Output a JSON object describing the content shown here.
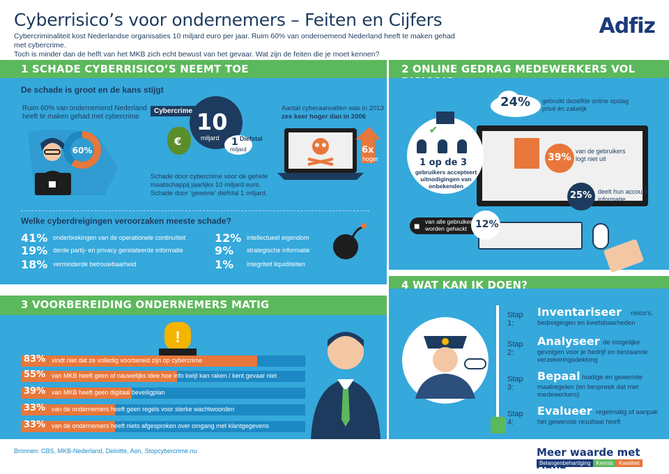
{
  "header": {
    "title": "Cyberrisico’s voor ondernemers  – Feiten en Cijfers",
    "intro1": "Cybercriminaliteit kost Nederlandse organisaties 10 miljard euro per jaar. Ruim 60% van ondernemend Nederland heeft te maken gehad met cybercrime.",
    "intro2": "Toch is minder dan de helft van het MKB zich echt bewust van het gevaar. Wat zijn de feiten die je moet kennen?",
    "logo": "Adfiz"
  },
  "section1": {
    "bar_label": "1   SCHADE CYBERRISICO’S NEEMT TOE",
    "heading": "De schade is groot en de kans stijgt",
    "ruim_line1": "Ruim 60% van ondernemend Nederland",
    "ruim_line2": "heeft te maken gehad met cybercrime",
    "donut_pct": "60%",
    "donut_value": 60,
    "cybercrime_label": "Cybercrime",
    "cybercrime_value": "10",
    "cybercrime_unit": "miljard",
    "diefstal_label": "Diefstal",
    "diefstal_value": "1",
    "diefstal_unit": "miljard",
    "euro_symbol": "€",
    "schade_line1": "Schade door cybercrime voor de gehele",
    "schade_line2": "maatschappij jaarlijks 10 miljard euro.",
    "schade_line3": "Schade door ‘gewone’ diefstal 1 miljard.",
    "aantal_line1": "Aantal cyberaanvallen was in 2013",
    "aantal_line2": "zes keer hoger dan in 2006",
    "arrow_value": "6x",
    "arrow_label": "hoger",
    "threats_heading": "Welke cyberdreigingen veroorzaken meeste schade?",
    "threats": [
      {
        "pct": "41%",
        "label": "onderbrekingen van de operationele continuïteit"
      },
      {
        "pct": "19%",
        "label": "derde partij- en privacy gerelateerde informatie"
      },
      {
        "pct": "18%",
        "label": "verminderde betrouwbaarheid"
      },
      {
        "pct": "12%",
        "label": "intellectueel eigendom"
      },
      {
        "pct": "9%",
        "label": "strategische informatie"
      },
      {
        "pct": "1%",
        "label": "integriteit liquiditeiten"
      }
    ]
  },
  "section2": {
    "bar_label": "2   ONLINE GEDRAG MEDEWERKERS VOL RISICO’S",
    "s24_pct": "24%",
    "s24_line1": "gebruikt dezelfde online opslag",
    "s24_line2": "privé én zakelijk",
    "s39_pct": "39%",
    "s39_line1": "van de gebruikers",
    "s39_line2": "logt niet uit",
    "s25_pct": "25%",
    "s25_line1": "deelt hun account-",
    "s25_line2": "informatie",
    "s12_pct": "12%",
    "s12_line1": "van alle gebruikers",
    "s12_line2": "worden gehackt",
    "one_of_three": "1 op de 3",
    "invite_line1": "gebruikers accepteert",
    "invite_line2": "uitnodigingen van",
    "invite_line3": "onbekenden"
  },
  "section3": {
    "bar_label": "3   VOORBEREIDING ONDERNEMERS MATIG",
    "rows": [
      {
        "pct": "83%",
        "value": 83,
        "text": "vindt niet dat ze volledig voorbereid zijn op cybercrime"
      },
      {
        "pct": "55%",
        "value": 55,
        "text": "van MKB heeft geen of nauwelijks idee hoe info kwijt kan raken / kent gevaar niet"
      },
      {
        "pct": "39%",
        "value": 39,
        "text": "van MKB heeft geen digitaal beveiligplan"
      },
      {
        "pct": "33%",
        "value": 33,
        "text": "van de ondernemers heeft geen regels voor sterke wachtwoorden"
      },
      {
        "pct": "33%",
        "value": 33,
        "text": "van de ondernemers heeft niets afgesproken over omgang met klantgegevens"
      }
    ]
  },
  "section4": {
    "bar_label": "4   WAT KAN IK DOEN?",
    "steps": [
      {
        "step": "Stap 1:",
        "keyword": "Inventariseer",
        "rest": "risico’s,",
        "desc": "bedreigingen en kwetsbaarheden"
      },
      {
        "step": "Stap 2:",
        "keyword": "Analyseer",
        "rest": "de mogelijke",
        "desc": "gevolgen voor je bedrijf en bestaande verzekeringsdekking"
      },
      {
        "step": "Stap 3:",
        "keyword": "Bepaal",
        "rest": "huidige en gewenste",
        "desc": "maatregelen (en bespreek dat met medewerkers)"
      },
      {
        "step": "Stap 4:",
        "keyword": "Evalueer",
        "rest": "regelmatig of aanpak",
        "desc": "het gewenste resultaat heeft"
      }
    ]
  },
  "footer": {
    "sources": "Bronnen: CBS, MKB-Nederland, Deloitte, Aon, Stopcybercrime.nu",
    "brand": "Meer waarde met Adfiz",
    "tags": [
      "Belangenbehartiging",
      "Kennis",
      "Kwaliteit"
    ]
  },
  "colors": {
    "blue": "#35a8dc",
    "dark_blue": "#1d3b5e",
    "green": "#5cb85c",
    "orange": "#e8773b"
  }
}
